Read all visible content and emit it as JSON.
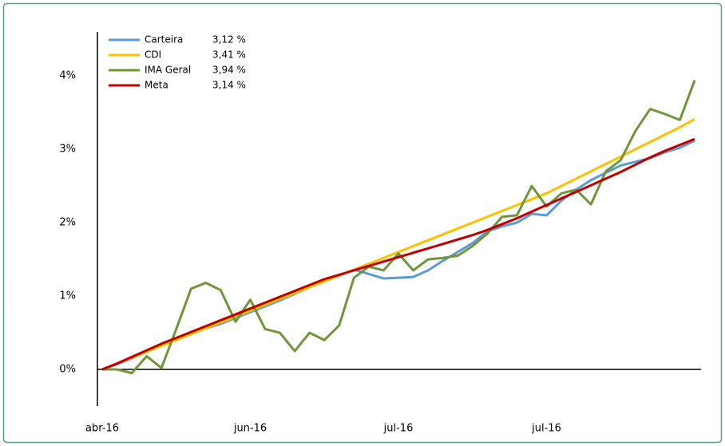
{
  "chart_data": {
    "type": "line",
    "categories": [
      "abr-16",
      null,
      null,
      null,
      null,
      null,
      null,
      null,
      null,
      null,
      "jun-16",
      null,
      null,
      null,
      null,
      null,
      null,
      null,
      null,
      null,
      "jul-16",
      null,
      null,
      null,
      null,
      null,
      null,
      null,
      null,
      null,
      "jul-16",
      null,
      null,
      null,
      null,
      null,
      null,
      null,
      null,
      null,
      null
    ],
    "series": [
      {
        "name": "Carteira",
        "legend_value": "3,12 %",
        "color": "#5b9bd5",
        "values": [
          0,
          0.07,
          0.15,
          0.24,
          0.33,
          0.42,
          0.5,
          0.56,
          0.62,
          0.7,
          0.78,
          0.86,
          0.94,
          1.03,
          1.12,
          1.2,
          1.28,
          1.36,
          1.3,
          1.24,
          1.25,
          1.26,
          1.35,
          1.48,
          1.6,
          1.72,
          1.88,
          1.95,
          2.0,
          2.12,
          2.1,
          2.3,
          2.45,
          2.58,
          2.68,
          2.78,
          2.83,
          2.88,
          2.96,
          3.02,
          3.12
        ]
      },
      {
        "name": "CDI",
        "legend_value": "3,41 %",
        "color": "#ffc000",
        "values": [
          0,
          0.08,
          0.16,
          0.24,
          0.32,
          0.4,
          0.48,
          0.56,
          0.64,
          0.72,
          0.8,
          0.88,
          0.96,
          1.04,
          1.12,
          1.2,
          1.28,
          1.36,
          1.44,
          1.52,
          1.6,
          1.68,
          1.76,
          1.84,
          1.92,
          2.0,
          2.08,
          2.16,
          2.24,
          2.32,
          2.4,
          2.5,
          2.6,
          2.7,
          2.8,
          2.9,
          3.0,
          3.1,
          3.2,
          3.3,
          3.41
        ]
      },
      {
        "name": "IMA Geral",
        "legend_value": "3,94 %",
        "color": "#70963c",
        "values": [
          0,
          0,
          -0.05,
          0.18,
          0.02,
          0.55,
          1.1,
          1.18,
          1.08,
          0.65,
          0.95,
          0.55,
          0.5,
          0.25,
          0.5,
          0.4,
          0.6,
          1.25,
          1.4,
          1.35,
          1.58,
          1.35,
          1.5,
          1.52,
          1.55,
          1.68,
          1.85,
          2.08,
          2.1,
          2.5,
          2.22,
          2.4,
          2.45,
          2.25,
          2.7,
          2.85,
          3.25,
          3.55,
          3.48,
          3.4,
          3.94
        ]
      },
      {
        "name": "Meta",
        "legend_value": "3,14 %",
        "color": "#c00000",
        "values": [
          0,
          0.08,
          0.17,
          0.26,
          0.35,
          0.43,
          0.51,
          0.59,
          0.67,
          0.75,
          0.83,
          0.91,
          0.99,
          1.07,
          1.15,
          1.23,
          1.29,
          1.35,
          1.41,
          1.47,
          1.53,
          1.59,
          1.65,
          1.71,
          1.77,
          1.83,
          1.9,
          1.98,
          2.06,
          2.15,
          2.24,
          2.33,
          2.42,
          2.51,
          2.6,
          2.69,
          2.79,
          2.89,
          2.98,
          3.06,
          3.14
        ]
      }
    ],
    "ylim": [
      -0.5,
      4.6
    ],
    "yticks": [
      {
        "value": 0,
        "label": "0%"
      },
      {
        "value": 1,
        "label": "1%"
      },
      {
        "value": 2,
        "label": "2%"
      },
      {
        "value": 3,
        "label": "3%"
      },
      {
        "value": 4,
        "label": "4%"
      }
    ],
    "grid": false
  }
}
